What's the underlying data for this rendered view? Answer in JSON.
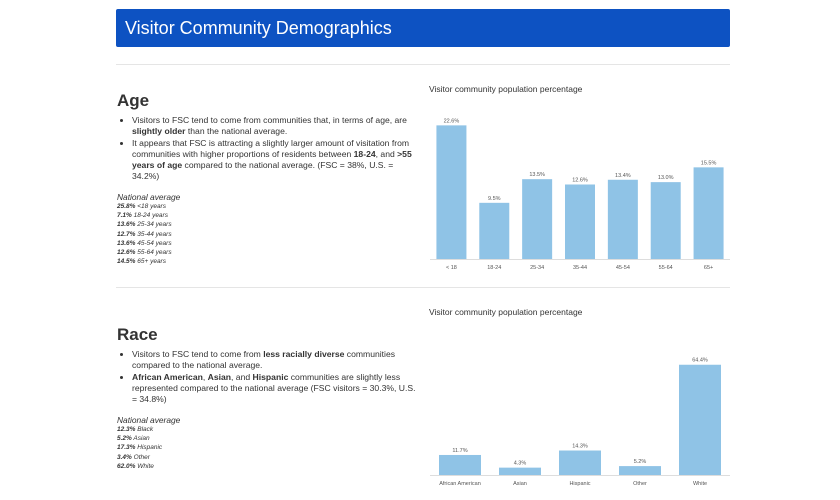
{
  "header": {
    "title": "Visitor Community Demographics"
  },
  "age": {
    "title": "Age",
    "bullets": [
      {
        "parts": [
          {
            "text": "Visitors to FSC tend to come from communities that, in terms of age, are ",
            "bold": false
          },
          {
            "text": "slightly older",
            "bold": true
          },
          {
            "text": " than the national average.",
            "bold": false
          }
        ]
      },
      {
        "parts": [
          {
            "text": "It appears that FSC is attracting a slightly larger amount of visitation from communities with higher proportions of residents between ",
            "bold": false
          },
          {
            "text": "18-24",
            "bold": true
          },
          {
            "text": ", and ",
            "bold": false
          },
          {
            "text": ">55 years of age",
            "bold": true
          },
          {
            "text": " compared to the national average. (FSC = 38%, U.S. = 34.2%)",
            "bold": false
          }
        ]
      }
    ],
    "national_heading": "National average",
    "national": [
      {
        "value": "25.8%",
        "label": "<18 years"
      },
      {
        "value": "7.1%",
        "label": "18-24 years"
      },
      {
        "value": "13.6%",
        "label": "25-34 years"
      },
      {
        "value": "12.7%",
        "label": "35-44 years"
      },
      {
        "value": "13.6%",
        "label": "45-54 years"
      },
      {
        "value": "12.6%",
        "label": "55-64 years"
      },
      {
        "value": "14.5%",
        "label": "65+ years"
      }
    ]
  },
  "race": {
    "title": "Race",
    "bullets": [
      {
        "parts": [
          {
            "text": "Visitors to FSC tend to come from ",
            "bold": false
          },
          {
            "text": "less racially diverse",
            "bold": true
          },
          {
            "text": " communities compared to the national average.",
            "bold": false
          }
        ]
      },
      {
        "parts": [
          {
            "text": "African American",
            "bold": true
          },
          {
            "text": ", ",
            "bold": false
          },
          {
            "text": "Asian",
            "bold": true
          },
          {
            "text": ", and ",
            "bold": false
          },
          {
            "text": "Hispanic",
            "bold": true
          },
          {
            "text": " communities are slightly less represented compared to the national average (FSC visitors = 30.3%, U.S. = 34.8%)",
            "bold": false
          }
        ]
      }
    ],
    "national_heading": "National average",
    "national": [
      {
        "value": "12.3%",
        "label": "Black"
      },
      {
        "value": "5.2%",
        "label": "Asian"
      },
      {
        "value": "17.3%",
        "label": "Hispanic"
      },
      {
        "value": "3.4%",
        "label": "Other"
      },
      {
        "value": "62.0%",
        "label": "White"
      }
    ]
  },
  "chart_data": [
    {
      "type": "bar",
      "title": "Visitor community population percentage",
      "categories": [
        "< 18",
        "18-24",
        "25-34",
        "35-44",
        "45-54",
        "55-64",
        "65+"
      ],
      "values": [
        22.6,
        9.5,
        13.5,
        12.6,
        13.4,
        13.0,
        15.5
      ],
      "data_labels": [
        "22.6%",
        "9.5%",
        "13.5%",
        "12.6%",
        "13.4%",
        "13.0%",
        "15.5%"
      ],
      "ylim": [
        0,
        23
      ],
      "bar_color": "#8fc3e6",
      "grid": false
    },
    {
      "type": "bar",
      "title": "Visitor community population percentage",
      "categories": [
        "African American",
        "Asian",
        "Hispanic",
        "Other",
        "White"
      ],
      "values": [
        11.7,
        4.3,
        14.3,
        5.2,
        64.4
      ],
      "data_labels": [
        "11.7%",
        "4.3%",
        "14.3%",
        "5.2%",
        "64.4%"
      ],
      "ylim": [
        0,
        66
      ],
      "bar_color": "#8fc3e6",
      "grid": false
    }
  ]
}
